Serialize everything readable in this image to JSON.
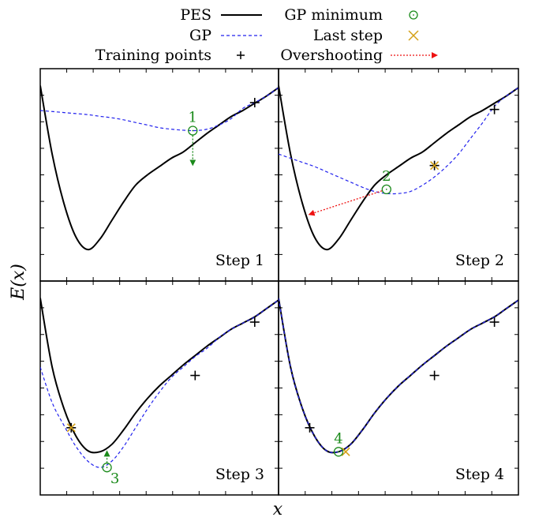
{
  "axes": {
    "xlabel": "x",
    "ylabel": "E(x)"
  },
  "legend": {
    "placement": "top",
    "entries": [
      {
        "label": "PES",
        "marker": "solid-line",
        "color": "#000000"
      },
      {
        "label": "GP",
        "marker": "dashed-line",
        "color": "#2222ee"
      },
      {
        "label": "Training points",
        "marker": "plus",
        "color": "#000000"
      },
      {
        "label": "GP minimum",
        "marker": "circle-dot",
        "color": "#1a8a1a"
      },
      {
        "label": "Last step",
        "marker": "x",
        "color": "#d4a017"
      },
      {
        "label": "Overshooting",
        "marker": "dotted-arrow",
        "color": "#ee1111"
      }
    ]
  },
  "chart_data": [
    {
      "type": "line",
      "title": "Step 1",
      "x_range": [
        0,
        1
      ],
      "y_range": [
        0,
        1
      ],
      "grid": false,
      "series": [
        {
          "name": "PES",
          "x": [
            0,
            0.05,
            0.1,
            0.15,
            0.2,
            0.25,
            0.3,
            0.35,
            0.4,
            0.45,
            0.5,
            0.55,
            0.6,
            0.65,
            0.7,
            0.75,
            0.8,
            0.85,
            0.9,
            0.95,
            1.0
          ],
          "y": [
            0.93,
            0.6,
            0.36,
            0.2,
            0.14,
            0.19,
            0.28,
            0.37,
            0.45,
            0.5,
            0.54,
            0.58,
            0.61,
            0.655,
            0.7,
            0.74,
            0.78,
            0.81,
            0.845,
            0.88,
            0.92
          ]
        },
        {
          "name": "GP",
          "x": [
            0,
            0.05,
            0.1,
            0.15,
            0.2,
            0.25,
            0.3,
            0.35,
            0.4,
            0.45,
            0.5,
            0.55,
            0.6,
            0.65,
            0.7,
            0.75,
            0.8,
            0.85,
            0.9,
            0.95,
            1.0
          ],
          "y": [
            0.81,
            0.805,
            0.8,
            0.795,
            0.79,
            0.782,
            0.775,
            0.765,
            0.752,
            0.74,
            0.727,
            0.72,
            0.715,
            0.713,
            0.72,
            0.74,
            0.77,
            0.82,
            0.848,
            0.88,
            0.92
          ]
        }
      ],
      "training_points": [
        {
          "x": 0.9,
          "y": 0.848
        }
      ],
      "gp_minimum": {
        "x": 0.64,
        "y": 0.713,
        "label": "1"
      },
      "last_step": null,
      "step_arrow": {
        "from": [
          0.64,
          0.713
        ],
        "to": [
          0.64,
          0.55
        ],
        "kind": "step"
      }
    },
    {
      "type": "line",
      "title": "Step 2",
      "x_range": [
        0,
        1
      ],
      "y_range": [
        0,
        1
      ],
      "grid": false,
      "series": [
        {
          "name": "PES",
          "x": [
            0,
            0.05,
            0.1,
            0.15,
            0.2,
            0.25,
            0.3,
            0.35,
            0.4,
            0.45,
            0.5,
            0.55,
            0.6,
            0.65,
            0.7,
            0.75,
            0.8,
            0.85,
            0.9,
            0.95,
            1.0
          ],
          "y": [
            0.93,
            0.6,
            0.36,
            0.2,
            0.14,
            0.19,
            0.28,
            0.37,
            0.45,
            0.5,
            0.54,
            0.58,
            0.61,
            0.655,
            0.7,
            0.74,
            0.78,
            0.81,
            0.845,
            0.88,
            0.92
          ]
        },
        {
          "name": "GP",
          "x": [
            0,
            0.05,
            0.1,
            0.15,
            0.2,
            0.25,
            0.3,
            0.35,
            0.4,
            0.45,
            0.5,
            0.55,
            0.6,
            0.65,
            0.7,
            0.75,
            0.8,
            0.85,
            0.9,
            0.95,
            1.0
          ],
          "y": [
            0.6,
            0.58,
            0.56,
            0.54,
            0.515,
            0.49,
            0.465,
            0.44,
            0.42,
            0.41,
            0.41,
            0.42,
            0.45,
            0.49,
            0.54,
            0.6,
            0.675,
            0.75,
            0.83,
            0.88,
            0.92
          ]
        },
        {
          "name": "Overshooting",
          "x": [
            0.45,
            0.13
          ],
          "y": [
            0.43,
            0.31
          ]
        }
      ],
      "training_points": [
        {
          "x": 0.65,
          "y": 0.545
        },
        {
          "x": 0.9,
          "y": 0.815
        }
      ],
      "gp_minimum": {
        "x": 0.45,
        "y": 0.43,
        "label": "2"
      },
      "last_step": {
        "x": 0.65,
        "y": 0.545
      },
      "step_arrow": {
        "from": [
          0.45,
          0.43
        ],
        "to": [
          0.13,
          0.31
        ],
        "kind": "overshoot"
      }
    },
    {
      "type": "line",
      "title": "Step 3",
      "x_range": [
        0,
        1
      ],
      "y_range": [
        0,
        1
      ],
      "grid": false,
      "series": [
        {
          "name": "PES",
          "x": [
            0,
            0.05,
            0.1,
            0.15,
            0.2,
            0.25,
            0.3,
            0.35,
            0.4,
            0.45,
            0.5,
            0.55,
            0.6,
            0.65,
            0.7,
            0.75,
            0.8,
            0.85,
            0.9,
            0.95,
            1.0
          ],
          "y": [
            0.93,
            0.6,
            0.4,
            0.27,
            0.2,
            0.195,
            0.23,
            0.3,
            0.38,
            0.45,
            0.51,
            0.56,
            0.61,
            0.655,
            0.7,
            0.74,
            0.78,
            0.81,
            0.84,
            0.88,
            0.92
          ]
        },
        {
          "name": "GP",
          "x": [
            0,
            0.05,
            0.1,
            0.15,
            0.2,
            0.25,
            0.3,
            0.35,
            0.4,
            0.45,
            0.5,
            0.55,
            0.6,
            0.65,
            0.7,
            0.75,
            0.8,
            0.85,
            0.9,
            0.95,
            1.0
          ],
          "y": [
            0.6,
            0.43,
            0.32,
            0.22,
            0.15,
            0.12,
            0.15,
            0.22,
            0.31,
            0.4,
            0.48,
            0.55,
            0.6,
            0.65,
            0.69,
            0.74,
            0.78,
            0.81,
            0.84,
            0.88,
            0.92
          ]
        }
      ],
      "training_points": [
        {
          "x": 0.13,
          "y": 0.31
        },
        {
          "x": 0.65,
          "y": 0.56
        },
        {
          "x": 0.9,
          "y": 0.815
        }
      ],
      "gp_minimum": {
        "x": 0.28,
        "y": 0.12,
        "label": "3"
      },
      "last_step": {
        "x": 0.13,
        "y": 0.31
      },
      "step_arrow": {
        "from": [
          0.28,
          0.12
        ],
        "to": [
          0.28,
          0.195
        ],
        "kind": "step"
      }
    },
    {
      "type": "line",
      "title": "Step 4",
      "x_range": [
        0,
        1
      ],
      "y_range": [
        0,
        1
      ],
      "grid": false,
      "series": [
        {
          "name": "PES",
          "x": [
            0,
            0.05,
            0.1,
            0.15,
            0.2,
            0.25,
            0.3,
            0.35,
            0.4,
            0.45,
            0.5,
            0.55,
            0.6,
            0.65,
            0.7,
            0.75,
            0.8,
            0.85,
            0.9,
            0.95,
            1.0
          ],
          "y": [
            0.93,
            0.6,
            0.4,
            0.27,
            0.2,
            0.195,
            0.23,
            0.3,
            0.38,
            0.45,
            0.51,
            0.56,
            0.61,
            0.655,
            0.7,
            0.74,
            0.78,
            0.81,
            0.84,
            0.88,
            0.92
          ]
        },
        {
          "name": "GP",
          "x": [
            0,
            0.05,
            0.1,
            0.15,
            0.2,
            0.25,
            0.3,
            0.35,
            0.4,
            0.45,
            0.5,
            0.55,
            0.6,
            0.65,
            0.7,
            0.75,
            0.8,
            0.85,
            0.9,
            0.95,
            1.0
          ],
          "y": [
            0.93,
            0.6,
            0.4,
            0.27,
            0.2,
            0.195,
            0.23,
            0.3,
            0.38,
            0.45,
            0.51,
            0.56,
            0.61,
            0.655,
            0.7,
            0.74,
            0.78,
            0.81,
            0.84,
            0.88,
            0.92
          ]
        }
      ],
      "training_points": [
        {
          "x": 0.13,
          "y": 0.31
        },
        {
          "x": 0.65,
          "y": 0.56
        },
        {
          "x": 0.9,
          "y": 0.815
        }
      ],
      "gp_minimum": {
        "x": 0.25,
        "y": 0.195,
        "label": "4"
      },
      "last_step": {
        "x": 0.28,
        "y": 0.195
      },
      "step_arrow": null
    }
  ]
}
